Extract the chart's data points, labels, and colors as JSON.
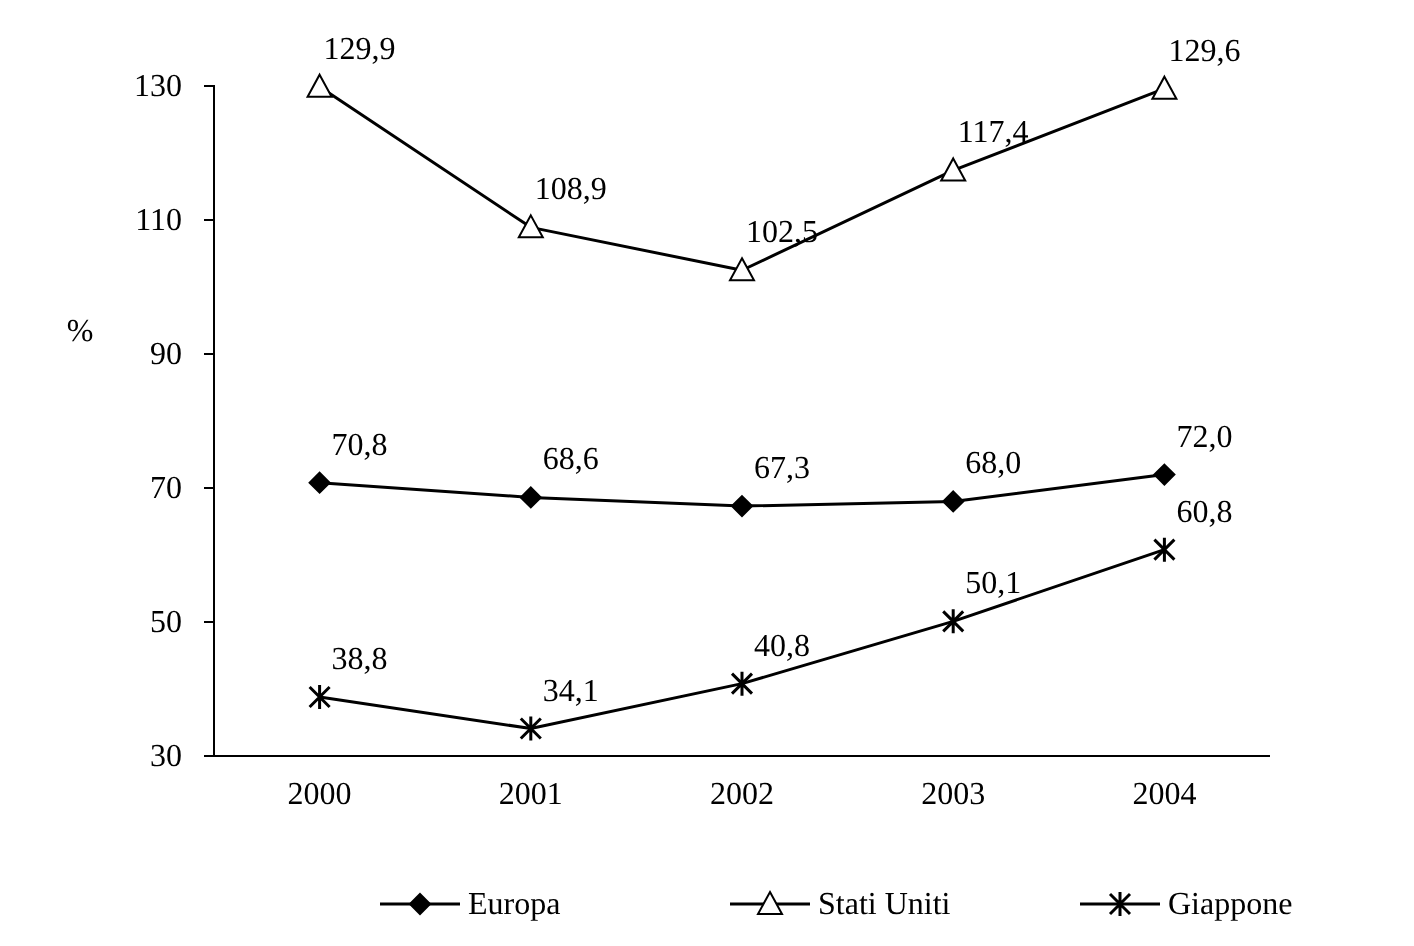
{
  "chart_data": {
    "type": "line",
    "ylabel": "%",
    "categories": [
      "2000",
      "2001",
      "2002",
      "2003",
      "2004"
    ],
    "ylim": [
      30,
      130
    ],
    "yticks": [
      30,
      50,
      70,
      90,
      110,
      130
    ],
    "grid": false,
    "legend": "bottom",
    "series": [
      {
        "name": "Europa",
        "color": "#000000",
        "marker": "diamond",
        "values": [
          70.8,
          68.6,
          67.3,
          68.0,
          72.0
        ],
        "value_labels": [
          "70,8",
          "68,6",
          "67,3",
          "68,0",
          "72,0"
        ]
      },
      {
        "name": "Stati Uniti",
        "color": "#000000",
        "marker": "triangle",
        "values": [
          129.9,
          108.9,
          102.5,
          117.4,
          129.6
        ],
        "value_labels": [
          "129,9",
          "108,9",
          "102,5",
          "117,4",
          "129,6"
        ]
      },
      {
        "name": "Giappone",
        "color": "#000000",
        "marker": "cross",
        "values": [
          38.8,
          34.1,
          40.8,
          50.1,
          60.8
        ],
        "value_labels": [
          "38,8",
          "34,1",
          "40,8",
          "50,1",
          "60,8"
        ]
      }
    ]
  }
}
